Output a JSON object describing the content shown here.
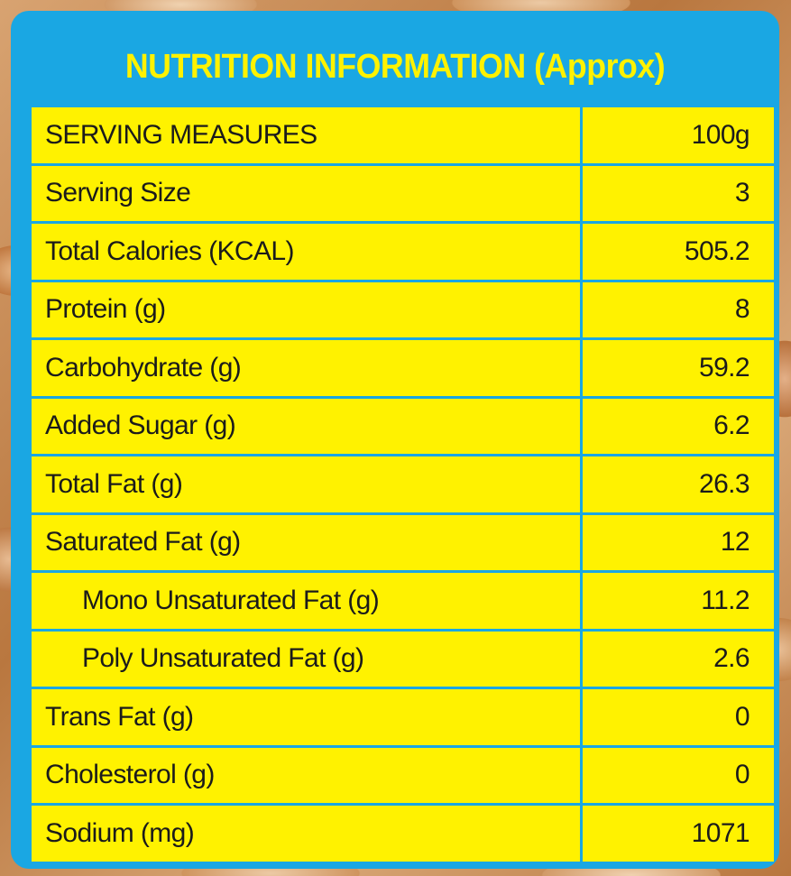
{
  "title": "NUTRITION INFORMATION (Approx)",
  "colors": {
    "panel": "#1aa7e3",
    "cells": "#fff200",
    "title_text": "#fff200",
    "cell_text": "#1b1b1b"
  },
  "rows": [
    {
      "label": "SERVING MEASURES",
      "value": "100g",
      "indent": false
    },
    {
      "label": "Serving Size",
      "value": "3",
      "indent": false
    },
    {
      "label": "Total Calories (KCAL)",
      "value": "505.2",
      "indent": false
    },
    {
      "label": "Protein (g)",
      "value": "8",
      "indent": false
    },
    {
      "label": "Carbohydrate (g)",
      "value": "59.2",
      "indent": false
    },
    {
      "label": "Added Sugar (g)",
      "value": "6.2",
      "indent": false
    },
    {
      "label": "Total Fat (g)",
      "value": "26.3",
      "indent": false
    },
    {
      "label": "Saturated Fat (g)",
      "value": "12",
      "indent": false
    },
    {
      "label": "Mono Unsaturated Fat (g)",
      "value": "11.2",
      "indent": true
    },
    {
      "label": "Poly Unsaturated Fat (g)",
      "value": "2.6",
      "indent": true
    },
    {
      "label": "Trans Fat (g)",
      "value": "0",
      "indent": false
    },
    {
      "label": "Cholesterol (g)",
      "value": "0",
      "indent": false
    },
    {
      "label": "Sodium (mg)",
      "value": "1071",
      "indent": false
    }
  ]
}
